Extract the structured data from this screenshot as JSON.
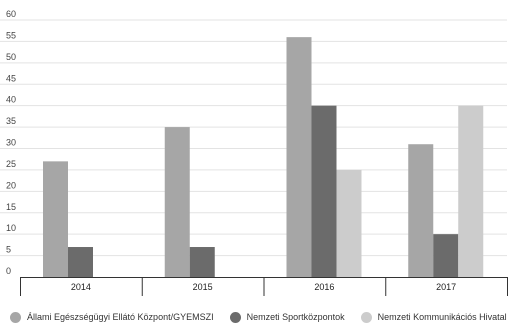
{
  "chart_data": {
    "type": "bar",
    "categories": [
      "2014",
      "2015",
      "2016",
      "2017"
    ],
    "series": [
      {
        "name": "Állami Egészségügyi Ellátó Központ/GYEMSZI",
        "values": [
          27,
          35,
          56,
          31
        ],
        "color": "#a6a6a6"
      },
      {
        "name": "Nemzeti Sportközpontok",
        "values": [
          7,
          7,
          40,
          10
        ],
        "color": "#6b6b6b"
      },
      {
        "name": "Nemzeti Kommunikációs Hivatal",
        "values": [
          null,
          null,
          25,
          40
        ],
        "color": "#cccccc"
      }
    ],
    "yticks": [
      "0",
      "5",
      "10",
      "15",
      "20",
      "25",
      "30",
      "35",
      "40",
      "45",
      "50",
      "55",
      "60"
    ],
    "ylim": [
      0,
      60
    ],
    "grid": true,
    "legend_position": "bottom",
    "title": "",
    "xlabel": "",
    "ylabel": ""
  }
}
